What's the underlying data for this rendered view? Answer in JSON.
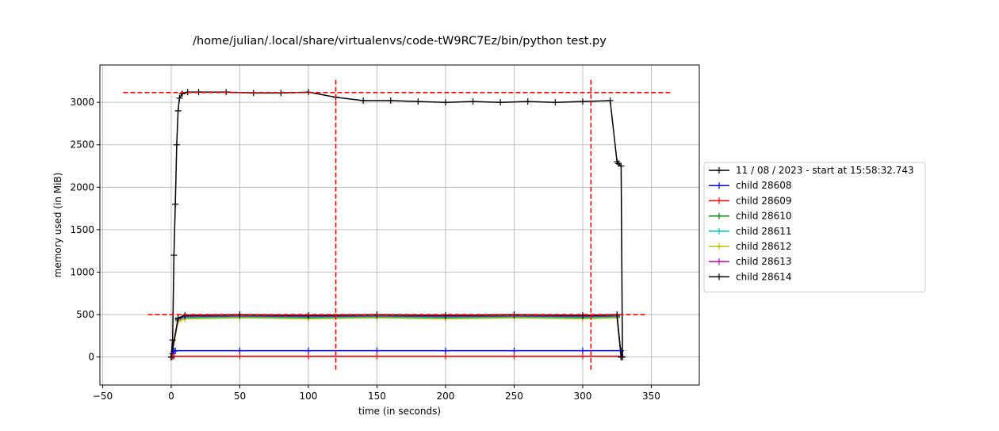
{
  "chart_data": {
    "type": "line",
    "title": "/home/julian/.local/share/virtualenvs/code-tW9RC7Ez/bin/python test.py",
    "xlabel": "time (in seconds)",
    "ylabel": "memory used (in MiB)",
    "xlim": [
      -52,
      385
    ],
    "ylim": [
      -330,
      3440
    ],
    "xticks": [
      -50,
      0,
      50,
      100,
      150,
      200,
      250,
      300,
      350
    ],
    "yticks": [
      0,
      500,
      1000,
      1500,
      2000,
      2500,
      3000
    ],
    "grid": true,
    "legend_position": "right",
    "series": [
      {
        "name": "11 / 08 / 2023 - start at 15:58:32.743",
        "color": "#000000",
        "x": [
          0,
          1,
          2,
          3,
          4,
          5,
          6,
          8,
          12,
          20,
          40,
          60,
          80,
          100,
          120,
          140,
          160,
          180,
          200,
          220,
          240,
          260,
          280,
          300,
          320,
          325,
          326,
          328,
          329
        ],
        "y": [
          0,
          200,
          1200,
          1800,
          2500,
          2900,
          3050,
          3100,
          3120,
          3120,
          3120,
          3110,
          3110,
          3120,
          3060,
          3020,
          3020,
          3010,
          3000,
          3010,
          3000,
          3010,
          3000,
          3010,
          3020,
          2300,
          2280,
          2250,
          0
        ]
      },
      {
        "name": "child 28608",
        "color": "#0000ff",
        "x": [
          0,
          1,
          2,
          3,
          50,
          100,
          150,
          200,
          250,
          300,
          328,
          329
        ],
        "y": [
          0,
          40,
          70,
          75,
          75,
          75,
          75,
          75,
          75,
          75,
          75,
          0
        ]
      },
      {
        "name": "child 28609",
        "color": "#ff0000",
        "x": [
          0,
          1,
          2,
          50,
          100,
          150,
          200,
          250,
          300,
          328,
          329
        ],
        "y": [
          0,
          5,
          10,
          10,
          10,
          10,
          10,
          10,
          10,
          10,
          0
        ]
      },
      {
        "name": "child 28610",
        "color": "#008000",
        "x": [
          0,
          5,
          10,
          50,
          100,
          150,
          200,
          250,
          300,
          325,
          328
        ],
        "y": [
          0,
          440,
          470,
          480,
          470,
          480,
          470,
          480,
          470,
          480,
          0
        ]
      },
      {
        "name": "child 28611",
        "color": "#00bfbf",
        "x": [
          0,
          5,
          10,
          50,
          100,
          150,
          200,
          250,
          300,
          325,
          328
        ],
        "y": [
          0,
          430,
          460,
          470,
          460,
          470,
          460,
          470,
          460,
          470,
          0
        ]
      },
      {
        "name": "child 28612",
        "color": "#bfbf00",
        "x": [
          0,
          5,
          10,
          50,
          100,
          150,
          200,
          250,
          300,
          325,
          328
        ],
        "y": [
          0,
          420,
          450,
          460,
          450,
          460,
          450,
          460,
          450,
          460,
          0
        ]
      },
      {
        "name": "child 28613",
        "color": "#bf00bf",
        "x": [
          0,
          5,
          10,
          50,
          100,
          150,
          200,
          250,
          300,
          325,
          328
        ],
        "y": [
          0,
          450,
          480,
          490,
          480,
          490,
          480,
          490,
          480,
          490,
          0
        ]
      },
      {
        "name": "child 28614",
        "color": "#000000",
        "x": [
          0,
          5,
          10,
          50,
          100,
          150,
          200,
          250,
          300,
          325,
          328
        ],
        "y": [
          0,
          460,
          490,
          500,
          490,
          500,
          490,
          500,
          490,
          500,
          0
        ]
      }
    ],
    "reference_lines": [
      {
        "orientation": "horizontal",
        "y": 3115,
        "x_range": [
          -35,
          365
        ],
        "color": "#ff0000",
        "style": "dashed"
      },
      {
        "orientation": "horizontal",
        "y": 500,
        "x_range": [
          -17,
          346
        ],
        "color": "#ff0000",
        "style": "dashed"
      },
      {
        "orientation": "vertical",
        "x": 120,
        "y_range": [
          -150,
          3280
        ],
        "color": "#ff0000",
        "style": "dashed"
      },
      {
        "orientation": "vertical",
        "x": 306,
        "y_range": [
          -150,
          3280
        ],
        "color": "#ff0000",
        "style": "dashed"
      }
    ]
  }
}
